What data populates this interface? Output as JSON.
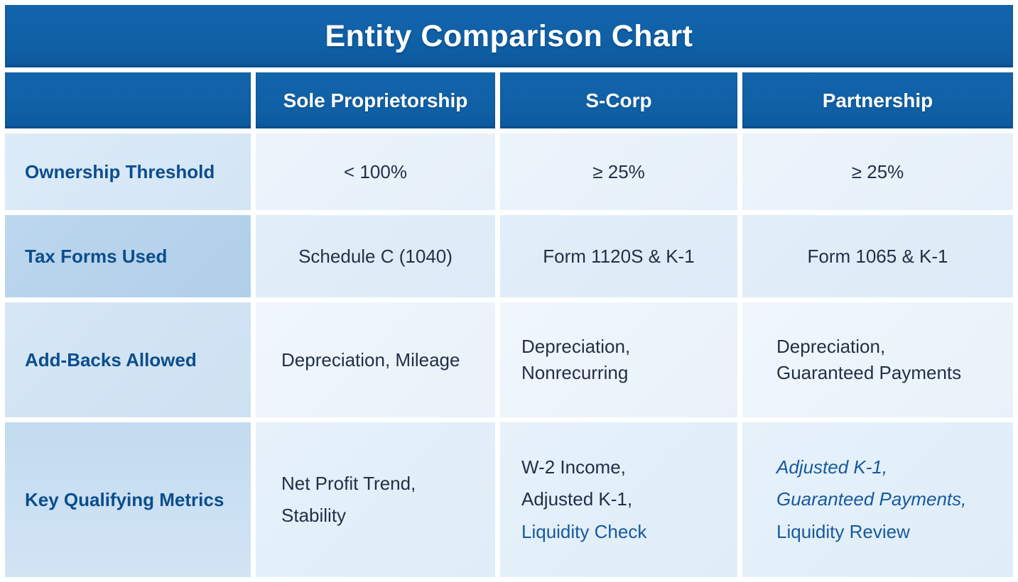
{
  "title": "Entity Comparison Chart",
  "colors": {
    "header_blue": "#0f5fa5",
    "label_cell_blue": "#c8def1",
    "data_cell_blue": "#e7f1fa",
    "label_text": "#0c4d8d",
    "data_text": "#222f47",
    "accent_blue_text": "#17589d",
    "background": "#ffffff"
  },
  "chart_data": {
    "type": "table",
    "title": "Entity Comparison Chart",
    "column_headers": [
      "Sole Proprietorship",
      "S-Corp",
      "Partnership"
    ],
    "rows": [
      {
        "label": "Ownership Threshold",
        "cells": [
          {
            "lines": [
              "< 100%"
            ]
          },
          {
            "lines": [
              "≥ 25%"
            ]
          },
          {
            "lines": [
              "≥ 25%"
            ]
          }
        ]
      },
      {
        "label": "Tax Forms Used",
        "cells": [
          {
            "lines": [
              "Schedule C (1040)"
            ]
          },
          {
            "lines": [
              "Form 1120S & K-1"
            ]
          },
          {
            "lines": [
              "Form 1065 & K-1"
            ]
          }
        ]
      },
      {
        "label": "Add-Backs Allowed",
        "cells": [
          {
            "lines": [
              "Depreciation, Mileage"
            ]
          },
          {
            "lines": [
              "Depreciation,",
              "Nonrecurring"
            ]
          },
          {
            "lines": [
              "Depreciation,",
              "Guaranteed Payments"
            ]
          }
        ]
      },
      {
        "label": "Key Qualifying Metrics",
        "cells": [
          {
            "lines": [
              "Net Profit Trend,",
              "Stability"
            ],
            "line_styles": [
              "dark",
              "dark"
            ]
          },
          {
            "lines": [
              "W-2 Income,",
              "Adjusted K-1,",
              "Liquidity Check"
            ],
            "line_styles": [
              "dark",
              "dark",
              "blue"
            ]
          },
          {
            "lines": [
              "Adjusted K-1,",
              "Guaranteed Payments,",
              "Liquidity Review"
            ],
            "line_styles": [
              "blue-italic",
              "blue-italic",
              "blue"
            ]
          }
        ]
      }
    ]
  }
}
